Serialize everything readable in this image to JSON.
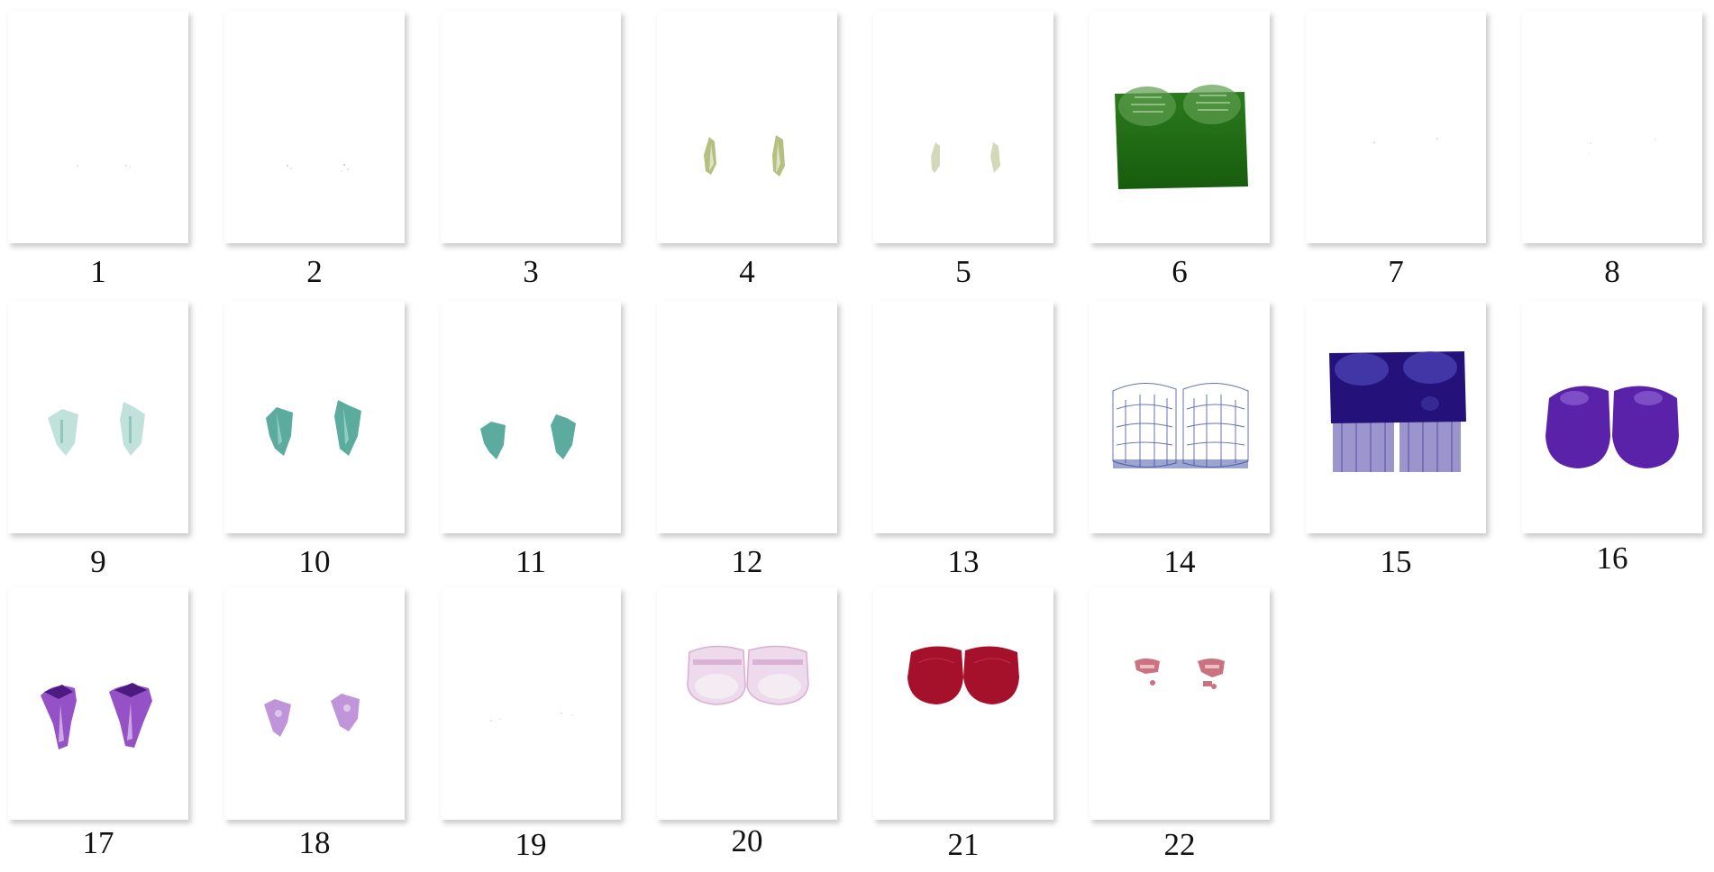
{
  "tiles": [
    {
      "label": "1",
      "render": "faint-specks"
    },
    {
      "label": "2",
      "render": "faint-specks"
    },
    {
      "label": "3",
      "render": "empty"
    },
    {
      "label": "4",
      "render": "olive-green-roots"
    },
    {
      "label": "5",
      "render": "pale-green-roots"
    },
    {
      "label": "6",
      "render": "green-block",
      "color": "#1f6b12"
    },
    {
      "label": "7",
      "render": "faint-specks"
    },
    {
      "label": "8",
      "render": "faint-specks"
    },
    {
      "label": "9",
      "render": "teal-roots-faint",
      "color": "#5fb3a4"
    },
    {
      "label": "10",
      "render": "teal-roots",
      "color": "#4aa394"
    },
    {
      "label": "11",
      "render": "teal-roots-small",
      "color": "#4aa394"
    },
    {
      "label": "12",
      "render": "empty"
    },
    {
      "label": "13",
      "render": "empty"
    },
    {
      "label": "14",
      "render": "blue-wireframe-teeth",
      "color": "#2d3b8f"
    },
    {
      "label": "15",
      "render": "indigo-block-teeth",
      "color": "#24127a"
    },
    {
      "label": "16",
      "render": "purple-solid-teeth",
      "color": "#5a22a8"
    },
    {
      "label": "17",
      "render": "violet-teeth",
      "color": "#8a3fc0"
    },
    {
      "label": "18",
      "render": "light-violet-teeth",
      "color": "#b07ad0"
    },
    {
      "label": "19",
      "render": "faint-specks"
    },
    {
      "label": "20",
      "render": "pink-translucent-teeth",
      "color": "#d8a6cc"
    },
    {
      "label": "21",
      "render": "crimson-teeth",
      "color": "#a5102a"
    },
    {
      "label": "22",
      "render": "rose-fragments",
      "color": "#c25a6a"
    }
  ]
}
